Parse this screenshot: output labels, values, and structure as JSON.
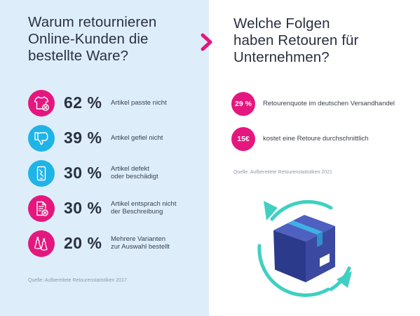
{
  "left": {
    "heading_lines": [
      "Warum retournieren",
      "Online-Kunden die",
      "bestellte Ware?"
    ],
    "reasons": [
      {
        "percent": "62 %",
        "desc_lines": [
          "Artikel passte nicht"
        ],
        "icon": "shirt-x-icon",
        "color": "#e5177e"
      },
      {
        "percent": "39 %",
        "desc_lines": [
          "Artikel gefiel nicht"
        ],
        "icon": "thumbs-down-icon",
        "color": "#1fb4e8"
      },
      {
        "percent": "30 %",
        "desc_lines": [
          "Artikel defekt",
          "oder beschädigt"
        ],
        "icon": "broken-phone-icon",
        "color": "#1fb4e8"
      },
      {
        "percent": "30 %",
        "desc_lines": [
          "Artikel entsprach nicht",
          "der Beschreibung"
        ],
        "icon": "document-x-icon",
        "color": "#e5177e"
      },
      {
        "percent": "20 %",
        "desc_lines": [
          "Mehrere Varianten",
          "zur Auswahl bestellt"
        ],
        "icon": "dresses-icon",
        "color": "#e5177e"
      }
    ],
    "source": "Quelle: Aufbereitete Retourenstatistiken 2017"
  },
  "right": {
    "heading_lines": [
      "Welche Folgen",
      "haben Retouren für",
      "Unternehmen?"
    ],
    "facts": [
      {
        "badge": "29 %",
        "text": "Retourenquote im deutschen Versandhandel"
      },
      {
        "badge": "15€",
        "text": "kostet eine Retoure durchschnittlich"
      }
    ],
    "source": "Quelle: Aufbereitete Retourenstatistiken 2021"
  },
  "colors": {
    "magenta": "#e5177e",
    "cyan": "#1fb4e8",
    "teal_arrows": "#3fd0c2",
    "box_blue": "#3b4aa0",
    "panel_left": "#ddeefa"
  },
  "icons": {
    "chevron": "chevron-right-icon",
    "illustration": "return-box-cycle-icon"
  }
}
